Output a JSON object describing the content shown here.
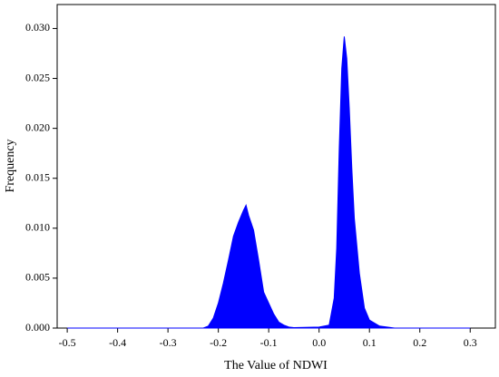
{
  "chart_data": {
    "type": "area",
    "x_label": "The Value of NDWI",
    "y_label": "Frequency",
    "color": "#0000ff",
    "x": [
      -0.5,
      -0.25,
      -0.23,
      -0.22,
      -0.21,
      -0.2,
      -0.19,
      -0.18,
      -0.17,
      -0.16,
      -0.15,
      -0.145,
      -0.14,
      -0.13,
      -0.12,
      -0.11,
      -0.1,
      -0.09,
      -0.08,
      -0.07,
      -0.06,
      -0.05,
      0.0,
      0.02,
      0.03,
      0.035,
      0.04,
      0.045,
      0.05,
      0.055,
      0.06,
      0.065,
      0.07,
      0.08,
      0.09,
      0.1,
      0.12,
      0.15,
      0.3
    ],
    "values": [
      0,
      0,
      0,
      0.0002,
      0.001,
      0.0025,
      0.0045,
      0.0068,
      0.0092,
      0.0106,
      0.0118,
      0.0123,
      0.0113,
      0.0098,
      0.0068,
      0.0036,
      0.0025,
      0.0014,
      0.0006,
      0.0003,
      0.0001,
      5e-05,
      0.0001,
      0.0003,
      0.003,
      0.008,
      0.018,
      0.026,
      0.0292,
      0.027,
      0.022,
      0.016,
      0.011,
      0.0055,
      0.002,
      0.0008,
      0.0002,
      0,
      0
    ],
    "xlim": [
      -0.52,
      0.35
    ],
    "ylim": [
      0,
      0.0324
    ],
    "xticks": [
      -0.5,
      -0.4,
      -0.3,
      -0.2,
      -0.1,
      {
        "value": 0,
        "label": "0.0"
      },
      0.1,
      0.2,
      0.3
    ],
    "yticks": [
      {
        "value": 0,
        "label": "0.000"
      },
      {
        "value": 0.005,
        "label": "0.005"
      },
      {
        "value": 0.01,
        "label": "0.010"
      },
      {
        "value": 0.015,
        "label": "0.015"
      },
      {
        "value": 0.02,
        "label": "0.020"
      },
      {
        "value": 0.025,
        "label": "0.025"
      },
      {
        "value": 0.03,
        "label": "0.030"
      }
    ]
  }
}
